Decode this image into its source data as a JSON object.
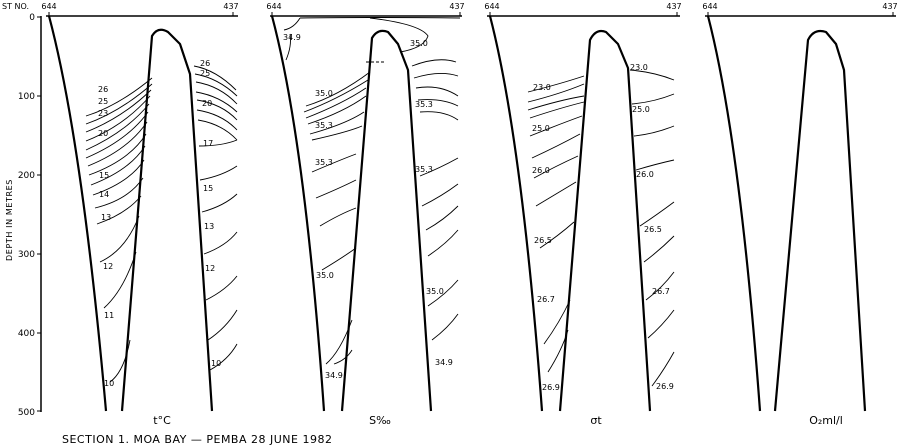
{
  "header": {
    "st_no_label": "ST NO."
  },
  "y_axis": {
    "label": "DEPTH IN METRES",
    "ticks": [
      "0",
      "100",
      "200",
      "300",
      "400",
      "500"
    ]
  },
  "panels": [
    {
      "id": "temperature",
      "name": "t°C",
      "stations": [
        "644",
        "437"
      ],
      "left_labels": [
        "26",
        "25",
        "23",
        "20",
        "15",
        "14",
        "13",
        "12",
        "11",
        "10"
      ],
      "right_labels": [
        "26",
        "25",
        "20",
        "17",
        "15",
        "13",
        "12",
        "10"
      ]
    },
    {
      "id": "salinity",
      "name": "S‰",
      "stations": [
        "644",
        "437"
      ],
      "left_labels": [
        "34.9",
        "35.0",
        "35.3",
        "35.3",
        "35.0",
        "34.9"
      ],
      "right_labels": [
        "35.0",
        "35.3",
        "35.3",
        "35.0",
        "34.9"
      ]
    },
    {
      "id": "sigma_t",
      "name": "σt",
      "stations": [
        "644",
        "437"
      ],
      "left_labels": [
        "23.0",
        "25.0",
        "26.0",
        "26.5",
        "26.7",
        "26.9"
      ],
      "right_labels": [
        "23.0",
        "25.0",
        "26.0",
        "26.5",
        "26.7",
        "26.9"
      ]
    },
    {
      "id": "oxygen",
      "name": "O₂ml/l",
      "stations": [
        "644",
        "437"
      ],
      "left_labels": [],
      "right_labels": []
    }
  ],
  "caption": "SECTION 1.  MOA BAY — PEMBA   28 JUNE 1982"
}
